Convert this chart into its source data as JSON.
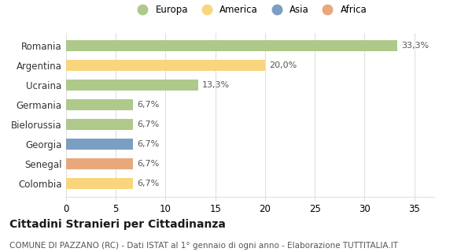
{
  "categories": [
    "Romania",
    "Argentina",
    "Ucraina",
    "Germania",
    "Bielorussia",
    "Georgia",
    "Senegal",
    "Colombia"
  ],
  "values": [
    33.3,
    20.0,
    13.3,
    6.7,
    6.7,
    6.7,
    6.7,
    6.7
  ],
  "labels": [
    "33,3%",
    "20,0%",
    "13,3%",
    "6,7%",
    "6,7%",
    "6,7%",
    "6,7%",
    "6,7%"
  ],
  "colors": [
    "#aec98a",
    "#f9d57e",
    "#aec98a",
    "#aec98a",
    "#aec98a",
    "#7a9fc2",
    "#e8a87c",
    "#f9d57e"
  ],
  "legend_entries": [
    {
      "label": "Europa",
      "color": "#aec98a"
    },
    {
      "label": "America",
      "color": "#f9d57e"
    },
    {
      "label": "Asia",
      "color": "#7a9fc2"
    },
    {
      "label": "Africa",
      "color": "#e8a87c"
    }
  ],
  "xlim": [
    0,
    37
  ],
  "xticks": [
    0,
    5,
    10,
    15,
    20,
    25,
    30,
    35
  ],
  "title": "Cittadini Stranieri per Cittadinanza",
  "subtitle": "COMUNE DI PAZZANO (RC) - Dati ISTAT al 1° gennaio di ogni anno - Elaborazione TUTTITALIA.IT",
  "background_color": "#ffffff",
  "grid_color": "#e0e0e0",
  "bar_height": 0.55,
  "title_fontsize": 10,
  "subtitle_fontsize": 7.5,
  "tick_fontsize": 8.5,
  "label_fontsize": 8,
  "legend_fontsize": 8.5
}
